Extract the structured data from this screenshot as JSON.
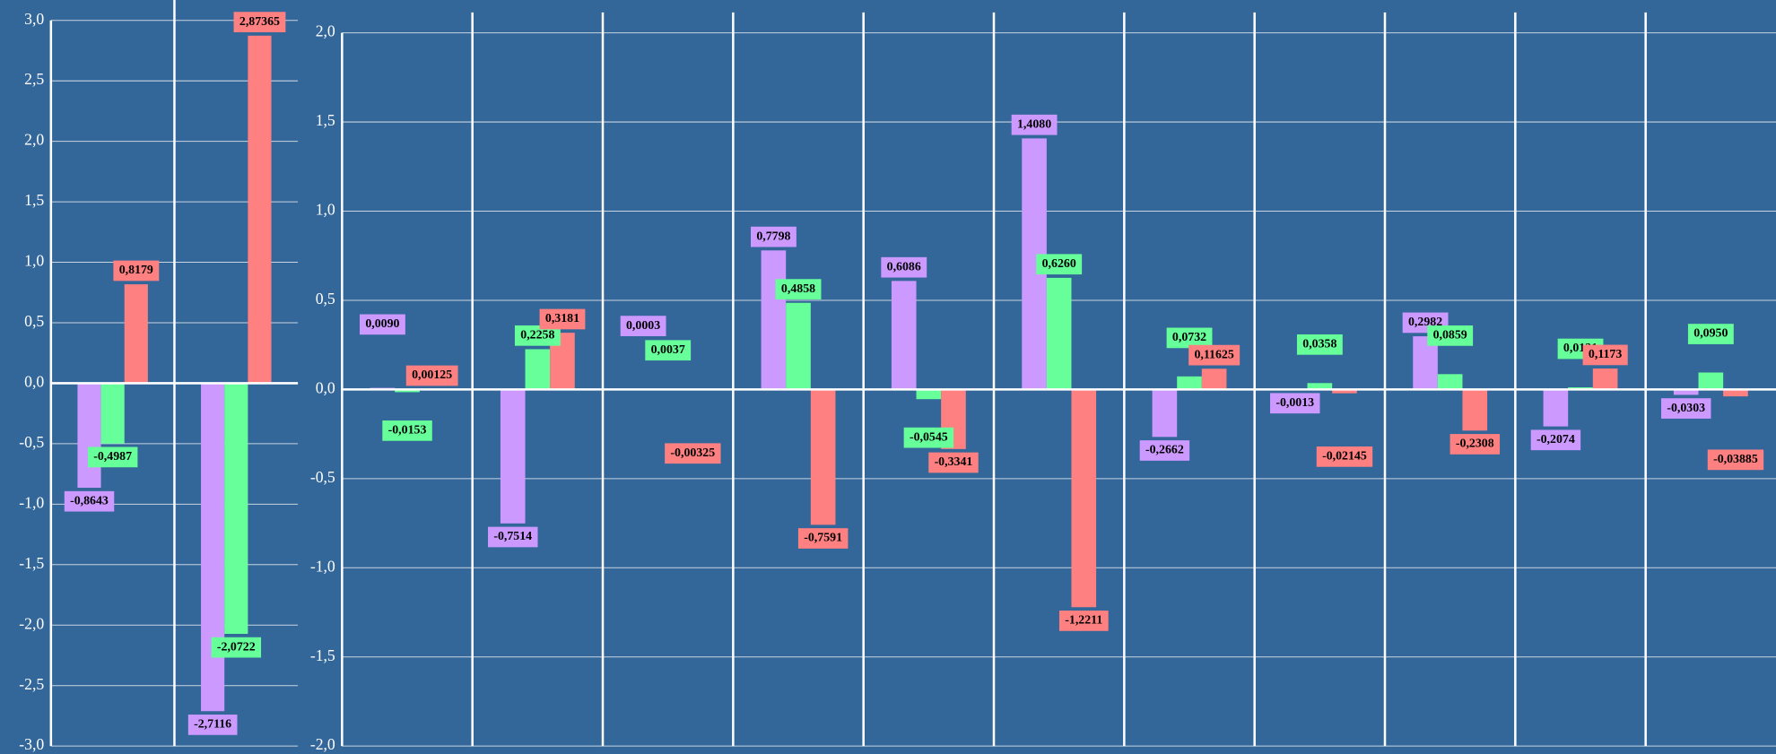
{
  "chart_data": [
    {
      "type": "bar",
      "categories": [
        null,
        null
      ],
      "series": [
        {
          "color": "#cc99ff",
          "values": [
            -0.8643,
            -2.7116
          ],
          "value_labels": [
            "-0,8643",
            "-2,7116"
          ]
        },
        {
          "color": "#66ff99",
          "values": [
            -0.4987,
            -2.0722
          ],
          "value_labels": [
            "-0,4987",
            "-2,0722"
          ]
        },
        {
          "color": "#ff8080",
          "values": [
            0.8179,
            2.87365
          ],
          "value_labels": [
            "0,8179",
            "2,87365"
          ]
        }
      ],
      "ylim": [
        -3,
        3
      ],
      "yticks": [
        {
          "value": 3,
          "label": "3,0"
        },
        {
          "value": 2.5,
          "label": "2,5"
        },
        {
          "value": 2,
          "label": "2,0"
        },
        {
          "value": 1.5,
          "label": "1,5"
        },
        {
          "value": 1,
          "label": "1,0"
        },
        {
          "value": 0.5,
          "label": "0,5"
        },
        {
          "value": 0,
          "label": "0,0"
        },
        {
          "value": -0.5,
          "label": "-0,5"
        },
        {
          "value": -1,
          "label": "-1,0"
        },
        {
          "value": -1.5,
          "label": "-1,5"
        },
        {
          "value": -2,
          "label": "-2,0"
        },
        {
          "value": -2.5,
          "label": "-2,5"
        },
        {
          "value": -3,
          "label": "-3,0"
        }
      ],
      "grid": true
    },
    {
      "type": "bar",
      "categories": [
        null,
        null,
        null,
        null,
        null,
        null,
        null,
        null,
        null,
        null,
        null
      ],
      "series": [
        {
          "color": "#cc99ff",
          "values": [
            0.009,
            -0.7514,
            0.0003,
            0.7798,
            0.6086,
            1.408,
            -0.2662,
            -0.0013,
            0.2982,
            -0.2074,
            -0.0303
          ],
          "value_labels": [
            "0,0090",
            "-0,7514",
            "0,0003",
            "0,7798",
            "0,6086",
            "1,4080",
            "-0,2662",
            "-0,0013",
            "0,2982",
            "-0,2074",
            "-0,0303"
          ]
        },
        {
          "color": "#66ff99",
          "values": [
            -0.0153,
            0.2258,
            0.0037,
            0.4858,
            -0.0545,
            0.626,
            0.0732,
            0.0358,
            0.0859,
            0.0121,
            0.095
          ],
          "value_labels": [
            "-0,0153",
            "0,2258",
            "0,0037",
            "0,4858",
            "-0,0545",
            "0,6260",
            "0,0732",
            "0,0358",
            "0,0859",
            "0,0121",
            "0,0950"
          ]
        },
        {
          "color": "#ff8080",
          "values": [
            0.00125,
            0.3181,
            -0.00325,
            -0.7591,
            -0.3341,
            -1.2211,
            0.11625,
            -0.02145,
            -0.2308,
            0.1173,
            -0.03885
          ],
          "value_labels": [
            "0,00125",
            "0,3181",
            "-0,00325",
            "-0,7591",
            "-0,3341",
            "-1,2211",
            "0,11625",
            "-0,02145",
            "-0,2308",
            "0,1173",
            "-0,03885"
          ]
        }
      ],
      "ylim": [
        -2,
        2
      ],
      "yticks": [
        {
          "value": 2,
          "label": "2,0"
        },
        {
          "value": 1.5,
          "label": "1,5"
        },
        {
          "value": 1,
          "label": "1,0"
        },
        {
          "value": 0.5,
          "label": "0,5"
        },
        {
          "value": 0,
          "label": "0,0"
        },
        {
          "value": -0.5,
          "label": "-0,5"
        },
        {
          "value": -1,
          "label": "-1,0"
        },
        {
          "value": -1.5,
          "label": "-1,5"
        },
        {
          "value": -2,
          "label": "-2,0"
        }
      ],
      "grid": true
    }
  ]
}
